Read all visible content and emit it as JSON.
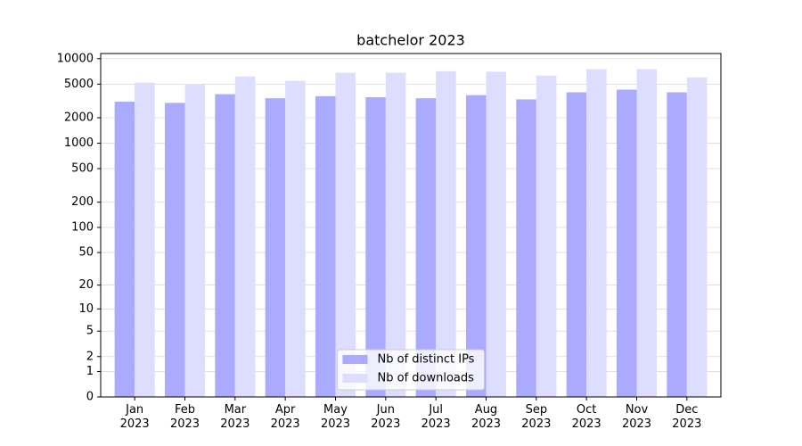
{
  "chart_data": {
    "type": "bar",
    "title": "batchelor 2023",
    "categories": [
      "Jan\n2023",
      "Feb\n2023",
      "Mar\n2023",
      "Apr\n2023",
      "May\n2023",
      "Jun\n2023",
      "Jul\n2023",
      "Aug\n2023",
      "Sep\n2023",
      "Oct\n2023",
      "Nov\n2023",
      "Dec\n2023"
    ],
    "series": [
      {
        "name": "Nb of distinct IPs",
        "color": "#aaaaff",
        "values": [
          3100,
          3000,
          3800,
          3400,
          3600,
          3500,
          3400,
          3700,
          3300,
          4000,
          4300,
          4000
        ]
      },
      {
        "name": "Nb of downloads",
        "color": "#ddddff",
        "values": [
          5200,
          4900,
          6150,
          5450,
          6800,
          6800,
          7100,
          7000,
          6300,
          7500,
          7500,
          6000
        ]
      }
    ],
    "yscale": "log1p",
    "ylim": [
      0,
      11500
    ],
    "yticks": [
      0,
      1,
      2,
      5,
      10,
      20,
      50,
      100,
      200,
      500,
      1000,
      2000,
      5000,
      10000
    ],
    "grid": true,
    "legend_position": "lower center"
  }
}
